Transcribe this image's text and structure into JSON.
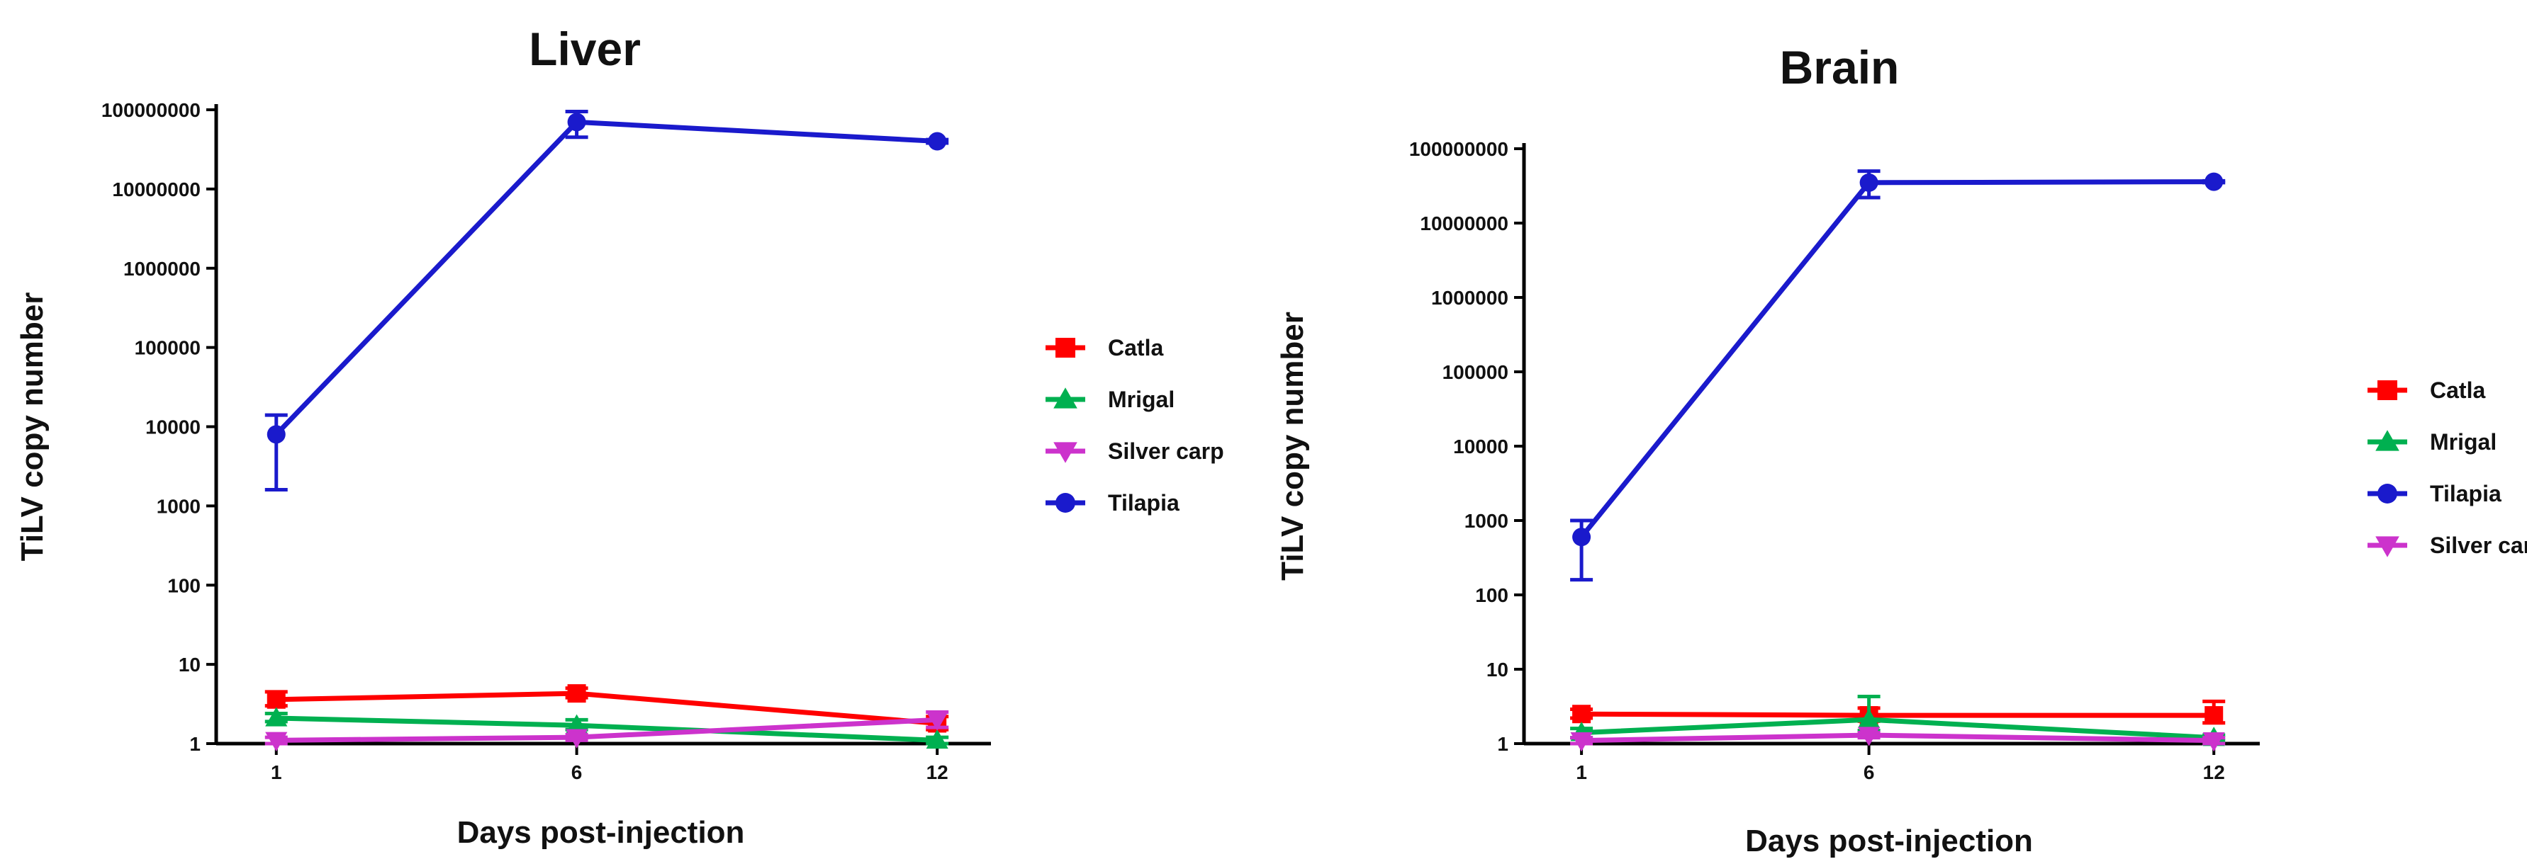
{
  "chart_data": [
    {
      "type": "line",
      "title": "Liver",
      "xlabel": "Days post-injection",
      "ylabel": "TiLV copy number",
      "yscale": "log",
      "ylim": [
        1,
        100000000
      ],
      "ytick_labels": [
        "1",
        "10",
        "100",
        "1000",
        "10000",
        "100000",
        "1000000",
        "10000000",
        "100000000"
      ],
      "x": [
        1,
        6,
        12
      ],
      "xtick_labels": [
        "1",
        "6",
        "12"
      ],
      "legend_position": "right",
      "series": [
        {
          "name": "Catla",
          "color": "#ff0000",
          "marker": "square",
          "values": [
            3.6,
            4.3,
            1.8
          ],
          "error_high": [
            4.5,
            5.0,
            2.2
          ],
          "error_low": [
            3.0,
            3.8,
            1.5
          ]
        },
        {
          "name": "Mrigal",
          "color": "#00b050",
          "marker": "triangle-up",
          "values": [
            2.1,
            1.7,
            1.1
          ],
          "error_high": [
            2.4,
            2.0,
            1.2
          ],
          "error_low": [
            1.9,
            1.5,
            1.0
          ]
        },
        {
          "name": "Silver carp",
          "color": "#cc33cc",
          "marker": "triangle-down",
          "values": [
            1.1,
            1.2,
            2.0
          ],
          "error_high": [
            1.2,
            1.3,
            2.5
          ],
          "error_low": [
            1.0,
            1.1,
            1.6
          ]
        },
        {
          "name": "Tilapia",
          "color": "#1a1acc",
          "marker": "circle",
          "values": [
            8000,
            70000000,
            40000000
          ],
          "error_high": [
            14000,
            95000000,
            42000000
          ],
          "error_low": [
            1600,
            45000000,
            38000000
          ]
        }
      ]
    },
    {
      "type": "line",
      "title": "Brain",
      "xlabel": "Days post-injection",
      "ylabel": "TiLV copy number",
      "yscale": "log",
      "ylim": [
        1,
        100000000
      ],
      "ytick_labels": [
        "1",
        "10",
        "100",
        "1000",
        "10000",
        "100000",
        "1000000",
        "10000000",
        "100000000"
      ],
      "x": [
        1,
        6,
        12
      ],
      "xtick_labels": [
        "1",
        "6",
        "12"
      ],
      "legend_position": "right",
      "series": [
        {
          "name": "Catla",
          "color": "#ff0000",
          "marker": "square",
          "values": [
            2.5,
            2.4,
            2.4
          ],
          "error_high": [
            2.9,
            3.0,
            3.7
          ],
          "error_low": [
            2.2,
            2.0,
            1.9
          ]
        },
        {
          "name": "Mrigal",
          "color": "#00b050",
          "marker": "triangle-up",
          "values": [
            1.4,
            2.1,
            1.2
          ],
          "error_high": [
            1.6,
            4.3,
            1.3
          ],
          "error_low": [
            1.2,
            1.5,
            1.1
          ]
        },
        {
          "name": "Tilapia",
          "color": "#1a1acc",
          "marker": "circle",
          "values": [
            600,
            35000000,
            36000000
          ],
          "error_high": [
            1000,
            50000000,
            37000000
          ],
          "error_low": [
            160,
            22000000,
            35000000
          ]
        },
        {
          "name": "Silver carp",
          "color": "#cc33cc",
          "marker": "triangle-down",
          "values": [
            1.1,
            1.3,
            1.1
          ],
          "error_high": [
            1.2,
            1.4,
            1.2
          ],
          "error_low": [
            1.0,
            1.2,
            1.0
          ]
        }
      ]
    }
  ]
}
